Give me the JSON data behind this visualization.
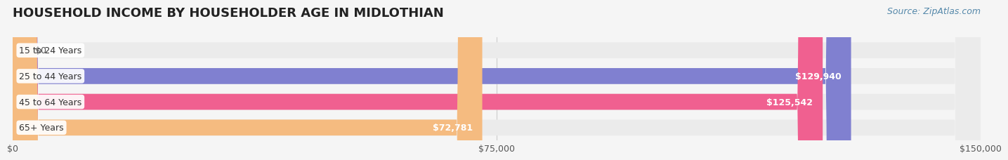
{
  "title": "HOUSEHOLD INCOME BY HOUSEHOLDER AGE IN MIDLOTHIAN",
  "source": "Source: ZipAtlas.com",
  "categories": [
    "15 to 24 Years",
    "25 to 44 Years",
    "45 to 64 Years",
    "65+ Years"
  ],
  "values": [
    0,
    129940,
    125542,
    72781
  ],
  "bar_colors": [
    "#6dccd1",
    "#8080d0",
    "#f06090",
    "#f5bb80"
  ],
  "bar_labels": [
    "$0",
    "$129,940",
    "$125,542",
    "$72,781"
  ],
  "xlim": [
    0,
    150000
  ],
  "xticks": [
    0,
    75000,
    150000
  ],
  "xtick_labels": [
    "$0",
    "$75,000",
    "$150,000"
  ],
  "background_color": "#f5f5f5",
  "bar_bg_color": "#ebebeb",
  "title_fontsize": 13,
  "source_fontsize": 9,
  "label_fontsize": 9,
  "tick_fontsize": 9,
  "bar_height": 0.62,
  "bar_gap": 0.12
}
